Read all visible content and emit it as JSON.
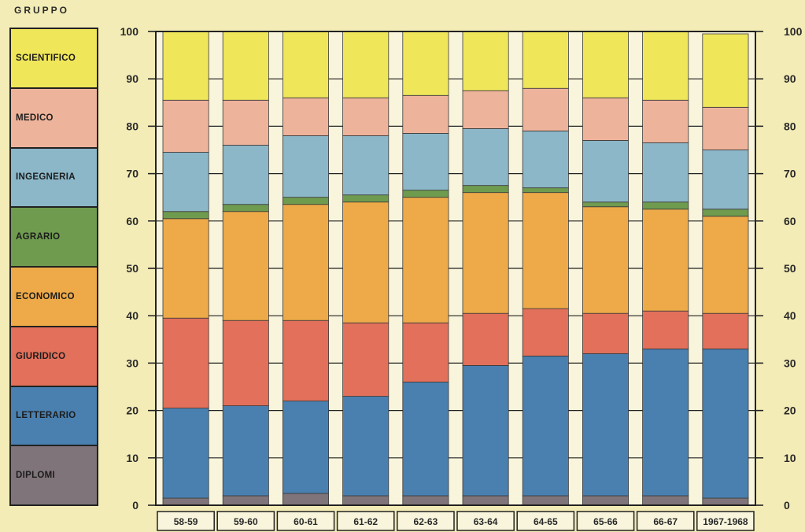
{
  "legend_title": "GRUPPO",
  "chart_data": {
    "type": "bar",
    "stacked": true,
    "categories": [
      "58-59",
      "59-60",
      "60-61",
      "61-62",
      "62-63",
      "63-64",
      "64-65",
      "65-66",
      "66-67",
      "1967-1968"
    ],
    "ylim": [
      0,
      100
    ],
    "yticks": [
      0,
      10,
      20,
      30,
      40,
      50,
      60,
      70,
      80,
      90,
      100
    ],
    "grid": true,
    "legend_position": "left",
    "series": [
      {
        "name": "DIPLOMI",
        "color": "#7f7479",
        "values": [
          1.5,
          2,
          2.5,
          2,
          2,
          2,
          2,
          2,
          2,
          1.5
        ]
      },
      {
        "name": "LETTERARIO",
        "color": "#4a80b0",
        "values": [
          19,
          19,
          19.5,
          21,
          24,
          27.5,
          29.5,
          30,
          31,
          31.5
        ]
      },
      {
        "name": "GIURIDICO",
        "color": "#e2705b",
        "values": [
          19,
          18,
          17,
          15.5,
          12.5,
          11,
          10,
          8.5,
          8,
          7.5
        ]
      },
      {
        "name": "ECONOMICO",
        "color": "#eeaa48",
        "values": [
          21,
          23,
          24.5,
          25.5,
          26.5,
          25.5,
          24.5,
          22.5,
          21.5,
          20.5
        ]
      },
      {
        "name": "AGRARIO",
        "color": "#6f9b4f",
        "values": [
          1.5,
          1.5,
          1.5,
          1.5,
          1.5,
          1.5,
          1,
          1,
          1.5,
          1.5
        ]
      },
      {
        "name": "INGEGNERIA",
        "color": "#8cb7c8",
        "values": [
          12.5,
          12.5,
          13,
          12.5,
          12,
          12,
          12,
          13,
          12.5,
          12.5
        ]
      },
      {
        "name": "MEDICO",
        "color": "#eeb39b",
        "values": [
          11,
          9.5,
          8,
          8,
          8,
          8,
          9,
          9,
          9,
          9
        ]
      },
      {
        "name": "SCIENTIFICO",
        "color": "#f0e65a",
        "values": [
          14.5,
          14.5,
          14,
          14,
          13.5,
          12.5,
          12,
          14,
          14.5,
          15.5
        ]
      }
    ]
  },
  "colors": {
    "background": "#f3ecb6",
    "gap": "#f8f5dc",
    "frame": "#222222",
    "text": "#2a2a2a"
  }
}
